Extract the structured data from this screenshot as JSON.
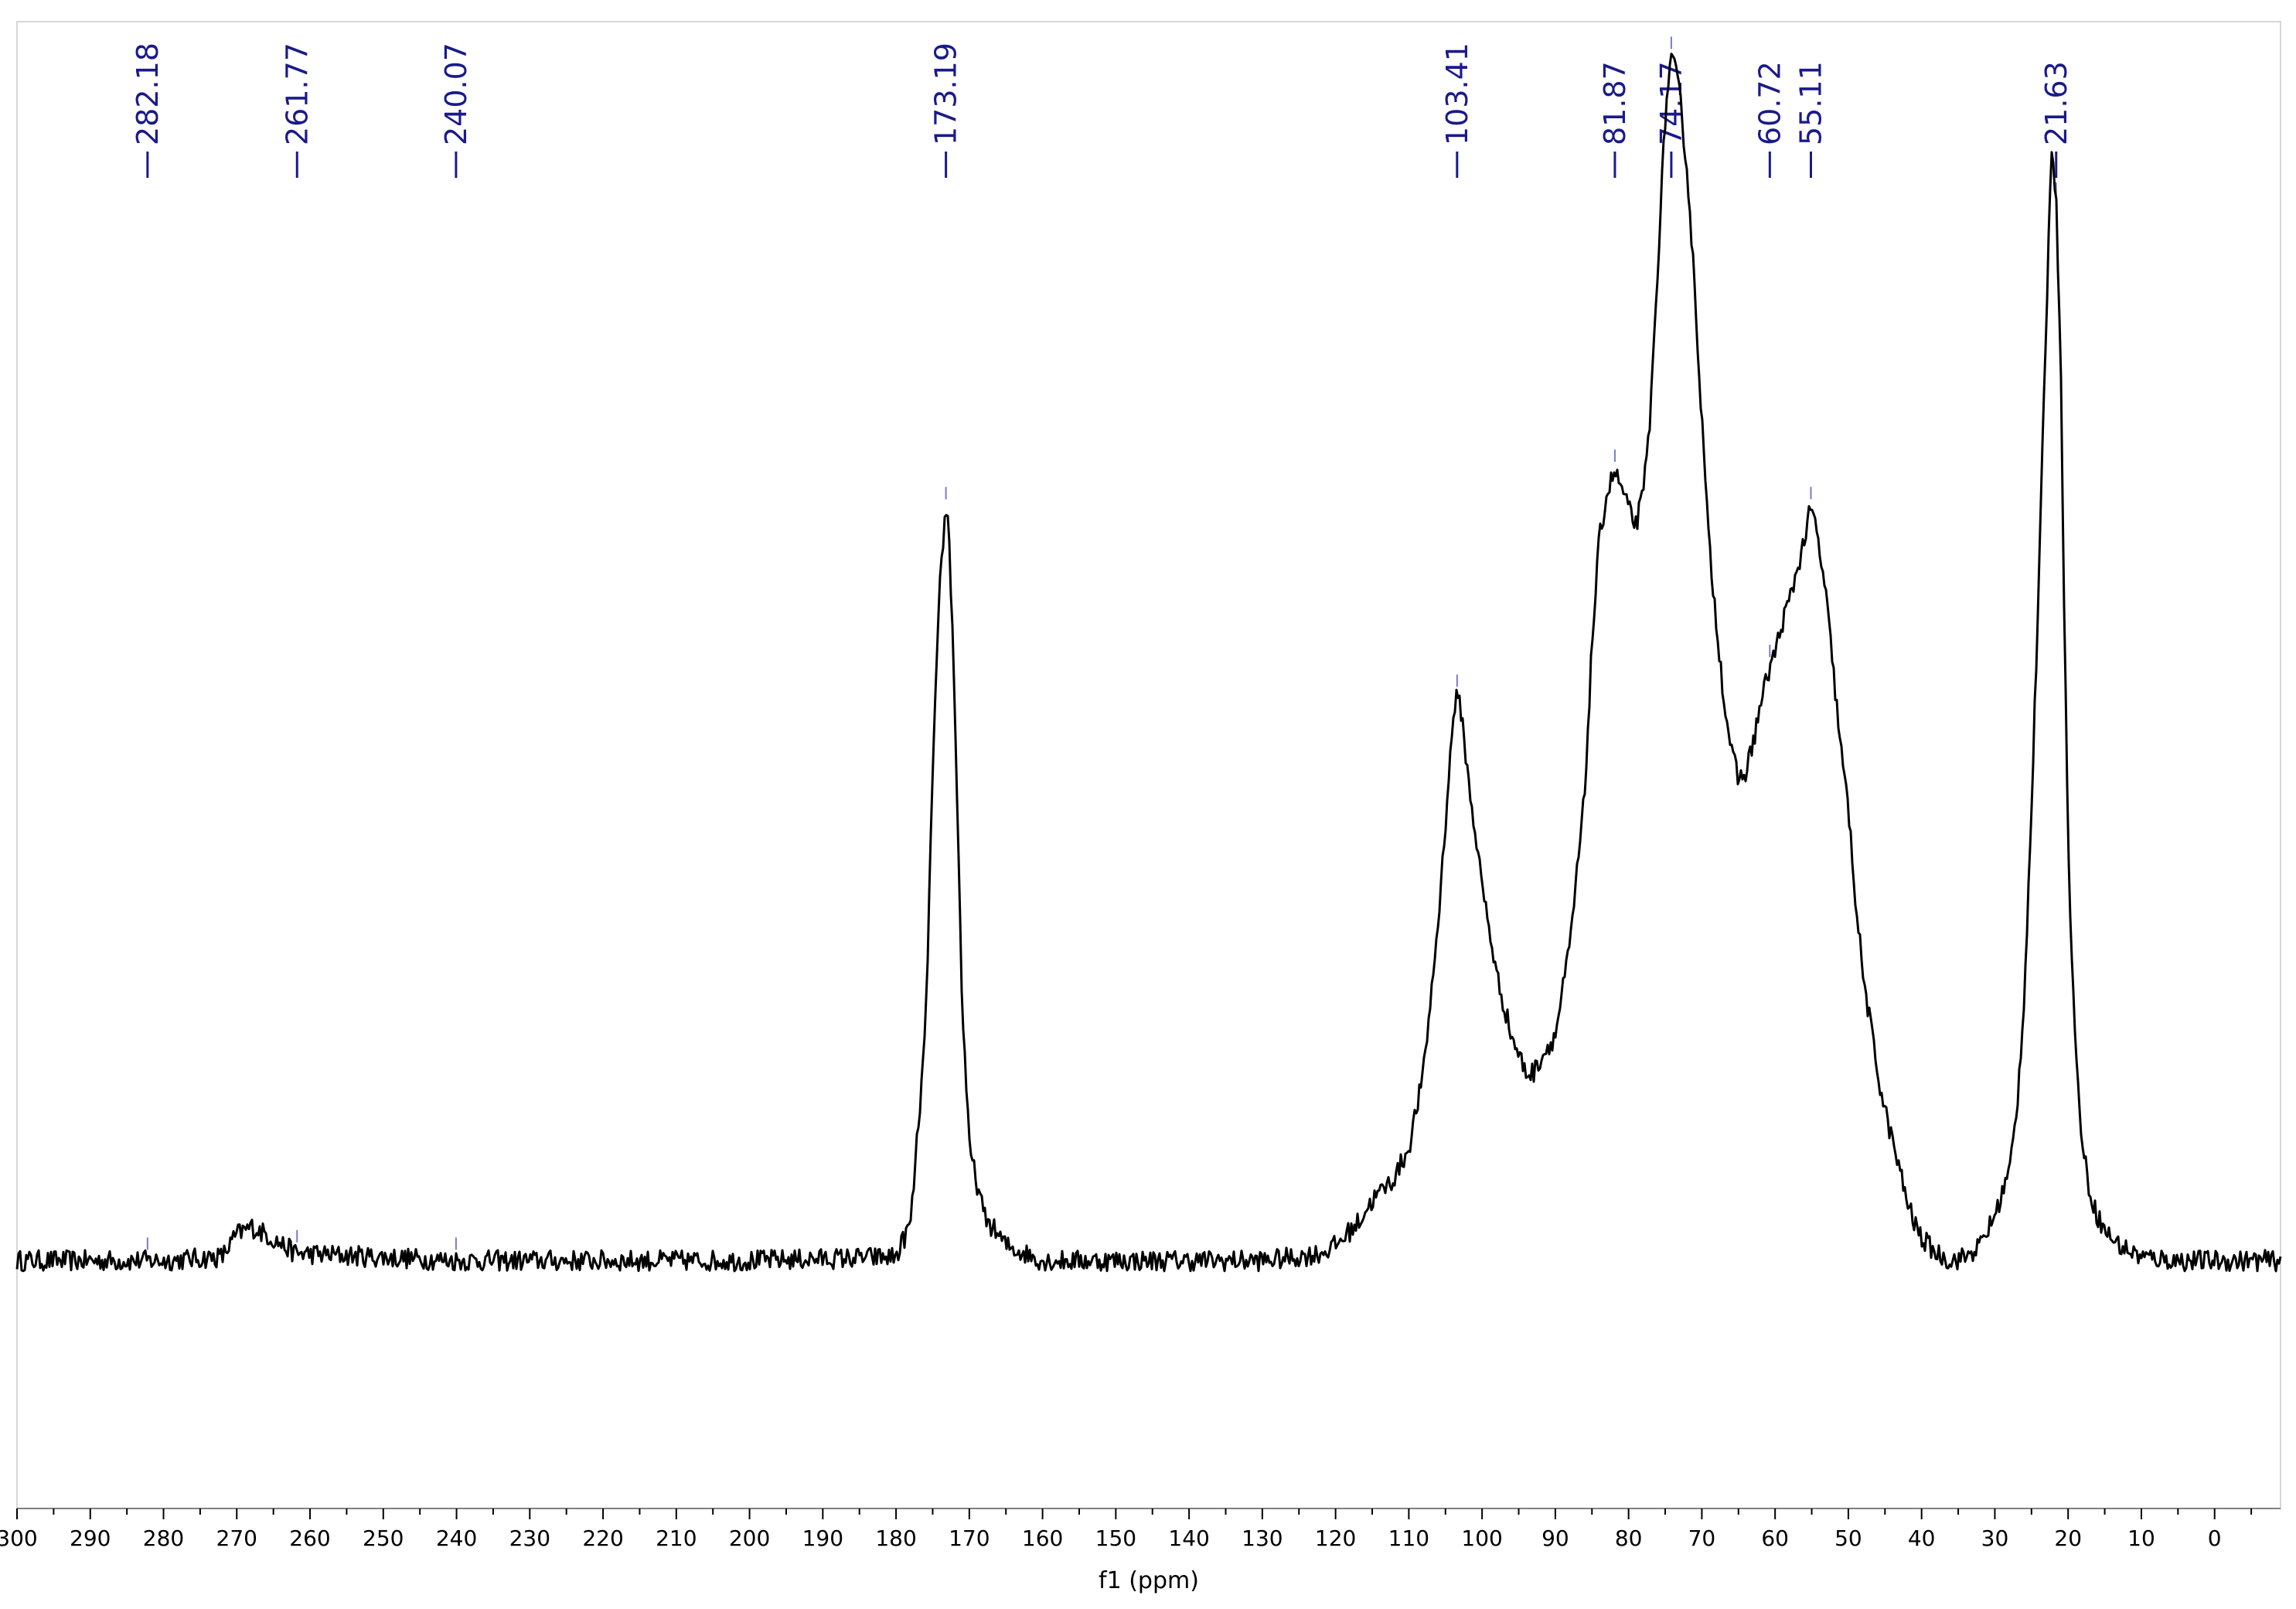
{
  "chart_data": {
    "type": "line",
    "title": "",
    "xlabel": "f1 (ppm)",
    "ylabel": "",
    "x_reversed": true,
    "xlim": [
      300,
      -9
    ],
    "ylim": [
      -0.33,
      1.65
    ],
    "grid": false,
    "legend": "none",
    "x_ticks": [
      "300",
      "290",
      "280",
      "270",
      "260",
      "250",
      "240",
      "230",
      "220",
      "210",
      "200",
      "190",
      "180",
      "170",
      "160",
      "150",
      "140",
      "130",
      "120",
      "110",
      "100",
      "90",
      "80",
      "70",
      "60",
      "50",
      "40",
      "30",
      "20",
      "10",
      "0"
    ],
    "peak_labels": [
      "282.18",
      "261.77",
      "240.07",
      "173.19",
      "103.41",
      "81.87",
      "74.17",
      "60.72",
      "55.11",
      "21.63"
    ],
    "series": [
      {
        "color": "#000000",
        "x": [
          300,
          280,
          272,
          270,
          268,
          266,
          262,
          240,
          200,
          180,
          178,
          176,
          175,
          174,
          173.5,
          173.2,
          172.8,
          172,
          171,
          170,
          168,
          165,
          160,
          150,
          140,
          130,
          125,
          122,
          120,
          117,
          115,
          112,
          110,
          108,
          106,
          104.5,
          103.8,
          103.4,
          102.8,
          102,
          100,
          98,
          96,
          94,
          93,
          92,
          90,
          88,
          86,
          85,
          84,
          83,
          82,
          81.9,
          81,
          80,
          79,
          78,
          77,
          76,
          75,
          74.5,
          74.2,
          73.5,
          73,
          72,
          71,
          70,
          69,
          68,
          67,
          66,
          65,
          64,
          63,
          62,
          61,
          60.7,
          60,
          59,
          58,
          57,
          56,
          55.4,
          55.1,
          54.5,
          54,
          53,
          52,
          51,
          50,
          49,
          48,
          46,
          45,
          44,
          43,
          42,
          41,
          40,
          39,
          38,
          36,
          34,
          32,
          30,
          28,
          27,
          26,
          25,
          24,
          23,
          22.2,
          21.6,
          21,
          20.5,
          20,
          19,
          18,
          17,
          16,
          15,
          13,
          10,
          5,
          0,
          -5,
          -9
        ],
        "y": [
          0,
          0,
          0.005,
          0.035,
          0.045,
          0.035,
          0.01,
          0,
          0,
          0.005,
          0.05,
          0.3,
          0.65,
          0.9,
          0.97,
          1.0,
          0.98,
          0.75,
          0.35,
          0.15,
          0.06,
          0.02,
          0,
          0,
          0,
          0,
          0.005,
          0.01,
          0.02,
          0.05,
          0.08,
          0.11,
          0.15,
          0.25,
          0.45,
          0.65,
          0.74,
          0.75,
          0.73,
          0.65,
          0.5,
          0.38,
          0.3,
          0.25,
          0.25,
          0.27,
          0.3,
          0.42,
          0.62,
          0.82,
          0.96,
          1.02,
          1.05,
          1.05,
          1.03,
          1.0,
          0.98,
          1.02,
          1.13,
          1.33,
          1.52,
          1.58,
          1.6,
          1.58,
          1.55,
          1.45,
          1.3,
          1.12,
          0.95,
          0.85,
          0.75,
          0.68,
          0.64,
          0.65,
          0.69,
          0.74,
          0.78,
          0.79,
          0.81,
          0.85,
          0.88,
          0.92,
          0.96,
          0.99,
          1.0,
          0.98,
          0.95,
          0.88,
          0.78,
          0.68,
          0.6,
          0.48,
          0.38,
          0.25,
          0.2,
          0.16,
          0.12,
          0.08,
          0.05,
          0.03,
          0.02,
          0.01,
          0,
          0.005,
          0.02,
          0.06,
          0.12,
          0.2,
          0.35,
          0.6,
          0.9,
          1.25,
          1.5,
          1.4,
          1.2,
          0.85,
          0.55,
          0.28,
          0.15,
          0.09,
          0.06,
          0.04,
          0.02,
          0.005,
          0,
          0,
          0,
          0
        ]
      }
    ]
  }
}
